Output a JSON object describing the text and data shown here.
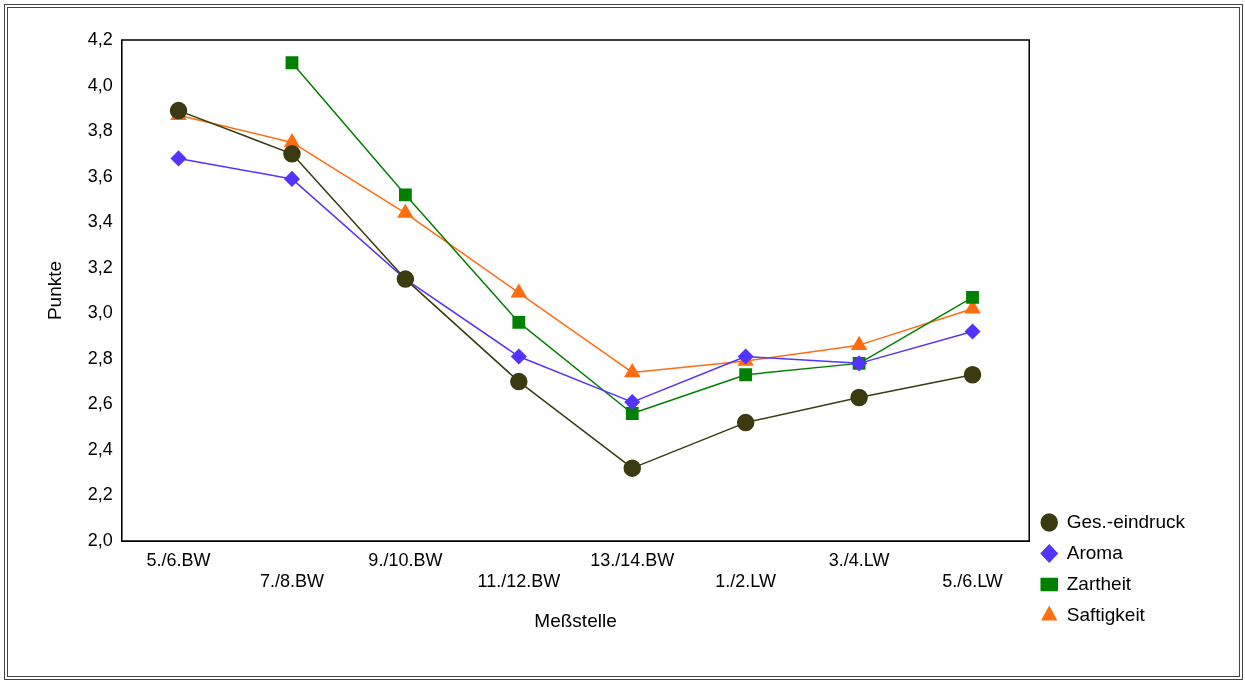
{
  "chart_data": {
    "type": "line",
    "xlabel": "Meßstelle",
    "ylabel": "Punkte",
    "categories": [
      "5./6.BW",
      "7./8.BW",
      "9./10.BW",
      "11./12.BW",
      "13./14.BW",
      "1./2.LW",
      "3./4.LW",
      "5./6.LW"
    ],
    "series": [
      {
        "name": "Ges.-eindruck",
        "color": "#3b3a10",
        "marker": "circle",
        "values": [
          3.89,
          3.7,
          3.15,
          2.7,
          2.32,
          2.52,
          2.63,
          2.73
        ]
      },
      {
        "name": "Aroma",
        "color": "#5533ff",
        "marker": "diamond",
        "values": [
          3.68,
          3.59,
          3.15,
          2.81,
          2.61,
          2.81,
          2.78,
          2.92
        ]
      },
      {
        "name": "Zartheit",
        "color": "#008000",
        "marker": "square",
        "values": [
          null,
          4.1,
          3.52,
          2.96,
          2.56,
          2.73,
          2.78,
          3.07
        ]
      },
      {
        "name": "Saftigkeit",
        "color": "#ff6d10",
        "marker": "triangle",
        "values": [
          3.87,
          3.75,
          3.44,
          3.09,
          2.74,
          2.79,
          2.86,
          3.02
        ]
      }
    ],
    "ylim": [
      2.0,
      4.2
    ],
    "yticks": [
      {
        "value": 2.0,
        "label": "2,0"
      },
      {
        "value": 2.2,
        "label": "2,2"
      },
      {
        "value": 2.4,
        "label": "2,4"
      },
      {
        "value": 2.6,
        "label": "2,6"
      },
      {
        "value": 2.8,
        "label": "2,8"
      },
      {
        "value": 3.0,
        "label": "3,0"
      },
      {
        "value": 3.2,
        "label": "3,2"
      },
      {
        "value": 3.4,
        "label": "3,4"
      },
      {
        "value": 3.6,
        "label": "3,6"
      },
      {
        "value": 3.8,
        "label": "3,8"
      },
      {
        "value": 4.0,
        "label": "4,0"
      },
      {
        "value": 4.2,
        "label": "4,2"
      }
    ],
    "grid": false,
    "legend": "right"
  }
}
